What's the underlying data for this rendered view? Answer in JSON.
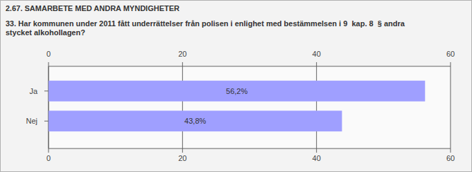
{
  "chart_data": {
    "type": "bar",
    "orientation": "horizontal",
    "title": "2.67. SAMARBETE MED ANDRA MYNDIGHETER",
    "subtitle": "33. Har kommunen under 2011 fått underrättelser från polisen i enlighet med bestämmelsen i 9  kap. 8  § andra stycket alkohollagen?",
    "categories": [
      "Ja",
      "Nej"
    ],
    "values": [
      56.2,
      43.8
    ],
    "value_labels": [
      "56,2%",
      "43,8%"
    ],
    "color": "#9f9fff",
    "xlim": [
      0,
      60
    ],
    "xticks": [
      0,
      20,
      40,
      60
    ],
    "grid": true,
    "data_labels": true
  }
}
